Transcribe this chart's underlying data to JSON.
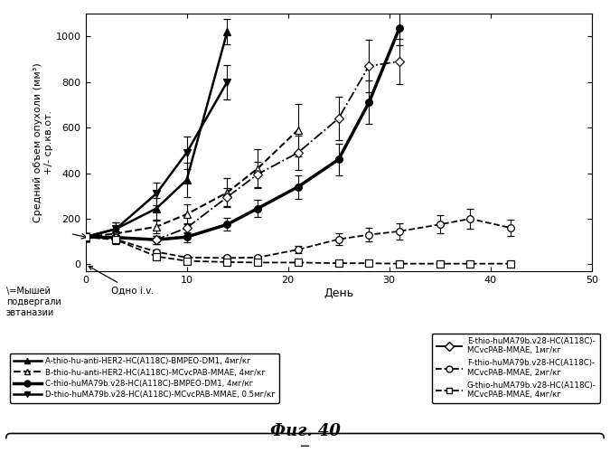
{
  "ylabel": "Средний объем опухоли (мм³)\n+/- ср.кв.от.",
  "xlabel": "День",
  "xlim": [
    0,
    50
  ],
  "ylim": [
    -30,
    1100
  ],
  "yticks": [
    0,
    200,
    400,
    600,
    800,
    1000
  ],
  "xticks": [
    0,
    10,
    20,
    30,
    40,
    50
  ],
  "figcaption": "Фиг. 40",
  "annotation_mouse": "=Мышей\nподвергали\nэвтаназии",
  "annotation_dose": "Одно i.v.",
  "series": {
    "A": {
      "label": "A-thio-hu-anti-HER2-HC(A118C)-BMPEO-DM1, 4мг/кг",
      "linestyle": "-",
      "marker": "^",
      "fillstyle": "full",
      "linewidth": 1.8,
      "x": [
        0,
        3,
        7,
        10,
        14
      ],
      "y": [
        120,
        155,
        245,
        370,
        1020
      ],
      "yerr": [
        18,
        28,
        48,
        75,
        55
      ]
    },
    "B": {
      "label": "B-thio-hu-anti-HER2-HC(A118C)-MCvcPAB-MMAE, 4мг/кг",
      "linestyle": "--",
      "marker": "^",
      "fillstyle": "none",
      "linewidth": 1.5,
      "x": [
        0,
        3,
        7,
        10,
        14,
        17,
        21
      ],
      "y": [
        120,
        135,
        165,
        220,
        315,
        420,
        590
      ],
      "yerr": [
        18,
        22,
        28,
        45,
        65,
        85,
        115
      ]
    },
    "C": {
      "label": "C-thio-huMA79b.v28-HC(A118C)-BMPEO-DM1, 4мг/кг",
      "linestyle": "-",
      "marker": "o",
      "fillstyle": "full",
      "linewidth": 2.5,
      "x": [
        0,
        3,
        7,
        10,
        14,
        17,
        21,
        25,
        28,
        31
      ],
      "y": [
        120,
        118,
        108,
        120,
        175,
        245,
        340,
        460,
        710,
        1035
      ],
      "yerr": [
        18,
        18,
        18,
        22,
        28,
        38,
        52,
        68,
        95,
        75
      ]
    },
    "D": {
      "label": "D-thio-huMA79b.v28-HC(A118C)-MCvcPAB-MMAE, 0.5мг/кг",
      "linestyle": "-",
      "marker": "v",
      "fillstyle": "full",
      "linewidth": 1.8,
      "x": [
        0,
        3,
        7,
        10,
        14
      ],
      "y": [
        120,
        155,
        310,
        490,
        800
      ],
      "yerr": [
        18,
        28,
        50,
        70,
        75
      ]
    },
    "E": {
      "label": "E-thio-huMA79b.v28-HC(A118C)-MCvcPAB-MMAE, 1мг/кг",
      "linestyle": "-.",
      "marker": "D",
      "fillstyle": "none",
      "linewidth": 1.3,
      "x": [
        0,
        3,
        7,
        10,
        14,
        17,
        21,
        25,
        28,
        31
      ],
      "y": [
        120,
        118,
        108,
        160,
        295,
        395,
        490,
        640,
        870,
        890
      ],
      "yerr": [
        18,
        18,
        18,
        22,
        38,
        55,
        75,
        95,
        115,
        100
      ]
    },
    "F": {
      "label": "F-thio-huMA79b.v28-HC(A118C)-MCvcPAB-MMAE, 2мг/кг",
      "linestyle": "--",
      "marker": "o",
      "fillstyle": "none",
      "linewidth": 1.3,
      "x": [
        0,
        3,
        7,
        10,
        14,
        17,
        21,
        25,
        28,
        31,
        35,
        38,
        42
      ],
      "y": [
        120,
        110,
        55,
        30,
        28,
        30,
        65,
        110,
        130,
        145,
        175,
        200,
        160
      ],
      "yerr": [
        18,
        18,
        12,
        8,
        8,
        8,
        15,
        25,
        30,
        35,
        40,
        45,
        35
      ]
    },
    "G": {
      "label": "G-thio-huMA79b.v28-HC(A118C)-MCvcPAB-MMAE, 4мг/кг",
      "linestyle": "--",
      "marker": "s",
      "fillstyle": "none",
      "linewidth": 1.3,
      "x": [
        0,
        3,
        7,
        10,
        14,
        17,
        21,
        25,
        28,
        31,
        35,
        38,
        42
      ],
      "y": [
        120,
        108,
        35,
        15,
        10,
        8,
        8,
        5,
        5,
        3,
        3,
        3,
        3
      ],
      "yerr": [
        18,
        18,
        12,
        6,
        4,
        3,
        3,
        3,
        2,
        2,
        2,
        2,
        2
      ]
    }
  },
  "legend_left": [
    "A",
    "B",
    "C",
    "D"
  ],
  "legend_right": [
    "E",
    "F",
    "G"
  ],
  "legend_left_labels": [
    "A-thio-hu-anti-HER2-HC(A118C)-BMPEO-DM1, 4мг/кг",
    "B-thio-hu-anti-HER2-HC(A118C)-MCvcPAB-MMAE, 4мг/кг",
    "C-thio-huMA79b.v28-HC(A118C)-BMPEO-DM1, 4мг/кг",
    "D-thio-huMA79b.v28-HC(A118C)-MCvcPAB-MMAE, 0.5мг/кг"
  ],
  "legend_right_labels": [
    "E-thio-huMA79b.v28-HC(A118C)-\nMCvcPAB-MMAE, 1мг/кг",
    "F-thio-huMA79b.v28-HC(A118C)-\nMCvcPAB-MMAE, 2мг/кг",
    "G-thio-huMA79b.v28-HC(A118C)-\nMCvcPAB-MMAE, 4мг/кг"
  ]
}
